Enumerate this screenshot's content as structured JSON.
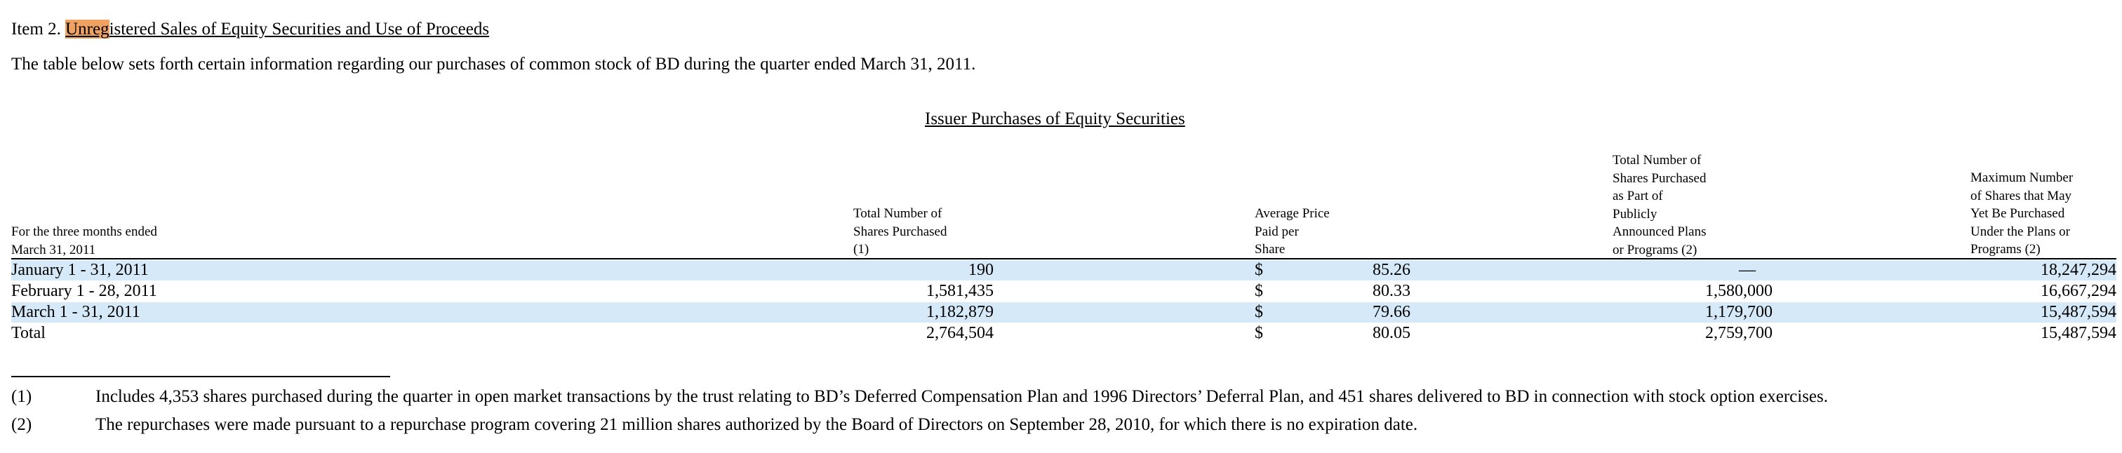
{
  "heading": {
    "prefix": "Item 2. ",
    "highlighted": "Unreg",
    "rest": "istered Sales of Equity Securities and Use of Proceeds"
  },
  "intro": "The table below sets forth certain information regarding our purchases of common stock of BD during the quarter ended March 31, 2011.",
  "table": {
    "title": "Issuer Purchases of Equity Securities",
    "headers": {
      "period": "For the three months ended\nMarch 31, 2011",
      "total": "Total Number of\nShares Purchased\n(1)",
      "price": "Average Price\nPaid per\nShare",
      "part": "Total Number of\nShares Purchased\nas Part of\nPublicly\nAnnounced Plans\nor Programs (2)",
      "max": "Maximum Number\nof Shares that May\nYet Be Purchased\nUnder the Plans or\nPrograms (2)"
    },
    "rows": [
      {
        "period": "January 1 - 31, 2011",
        "total": "190",
        "dollar": "$",
        "price": "85.26",
        "part": "",
        "part_dash": "—",
        "max": "18,247,294"
      },
      {
        "period": "February 1 - 28, 2011",
        "total": "1,581,435",
        "dollar": "$",
        "price": "80.33",
        "part": "1,580,000",
        "part_dash": "",
        "max": "16,667,294"
      },
      {
        "period": "March 1 - 31, 2011",
        "total": "1,182,879",
        "dollar": "$",
        "price": "79.66",
        "part": "1,179,700",
        "part_dash": "",
        "max": "15,487,594"
      },
      {
        "period": "Total",
        "total": "2,764,504",
        "dollar": "$",
        "price": "80.05",
        "part": "2,759,700",
        "part_dash": "",
        "max": "15,487,594"
      }
    ]
  },
  "footnotes": [
    {
      "num": "(1)",
      "text": "Includes 4,353 shares purchased during the quarter in open market transactions by the trust relating to BD’s Deferred Compensation Plan and 1996 Directors’ Deferral Plan, and 451 shares delivered to BD in connection with stock option exercises."
    },
    {
      "num": "(2)",
      "text": "The repurchases were made pursuant to a repurchase program covering 21 million shares authorized by the Board of Directors on September 28, 2010, for which there is no expiration date."
    }
  ],
  "colors": {
    "highlight": "#f0a263",
    "row_shade": "#d5e9f8"
  }
}
